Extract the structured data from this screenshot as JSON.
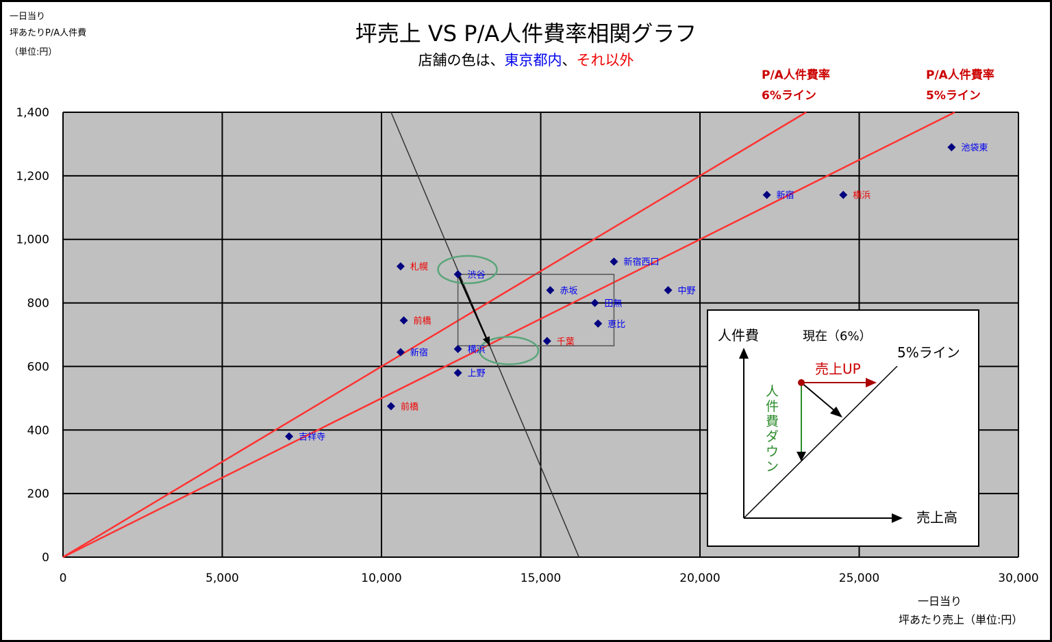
{
  "chart_data": {
    "type": "scatter",
    "title": "坪売上 VS P/A人件費率相関グラフ",
    "subtitle": {
      "prefix": "店舗の色は、",
      "tokyo": "東京都内",
      "sep": "、",
      "other": "それ以外"
    },
    "ylabel": [
      "一日当り",
      "坪あたりP/A人件費",
      "（単位:円）"
    ],
    "xlabel": [
      "一日当り",
      "坪あたり売上（単位:円）"
    ],
    "xlim": [
      0,
      30000
    ],
    "ylim": [
      0,
      1400
    ],
    "x_ticks": [
      0,
      5000,
      10000,
      15000,
      20000,
      25000,
      30000
    ],
    "y_ticks": [
      0,
      200,
      400,
      600,
      800,
      1000,
      1200,
      1400
    ],
    "x_tick_labels": [
      "0",
      "5,000",
      "10,000",
      "15,000",
      "20,000",
      "25,000",
      "30,000"
    ],
    "y_tick_labels": [
      "0",
      "200",
      "400",
      "600",
      "800",
      "1,000",
      "1,200",
      "1,400"
    ],
    "grid": true,
    "colors": {
      "tokyo": "#0000ee",
      "other": "#ee0000",
      "marker": "#000080",
      "ratio_line": "#ff3333",
      "plot_bg": "#c0c0c0",
      "grid": "#000000",
      "ellipse": "#5aa57a"
    },
    "ratio_lines": [
      {
        "label": [
          "P/A人件費率",
          "6%ライン"
        ],
        "slope": 0.06
      },
      {
        "label": [
          "P/A人件費率",
          "5%ライン"
        ],
        "slope": 0.05
      }
    ],
    "points": [
      {
        "x": 7100,
        "y": 380,
        "label": "吉祥寺",
        "group": "tokyo"
      },
      {
        "x": 10300,
        "y": 475,
        "label": "前橋",
        "group": "other"
      },
      {
        "x": 10600,
        "y": 645,
        "label": "新宿",
        "group": "tokyo"
      },
      {
        "x": 10700,
        "y": 745,
        "label": "前橋",
        "group": "other"
      },
      {
        "x": 10600,
        "y": 915,
        "label": "札幌",
        "group": "other"
      },
      {
        "x": 12400,
        "y": 890,
        "label": "渋谷",
        "group": "tokyo"
      },
      {
        "x": 12400,
        "y": 655,
        "label": "横浜",
        "group": "tokyo"
      },
      {
        "x": 12400,
        "y": 580,
        "label": "上野",
        "group": "tokyo"
      },
      {
        "x": 15200,
        "y": 680,
        "label": "千葉",
        "group": "other"
      },
      {
        "x": 15300,
        "y": 840,
        "label": "赤坂",
        "group": "tokyo"
      },
      {
        "x": 16700,
        "y": 800,
        "label": "田無",
        "group": "tokyo"
      },
      {
        "x": 16800,
        "y": 735,
        "label": "恵比",
        "group": "tokyo"
      },
      {
        "x": 17300,
        "y": 930,
        "label": "新宿西口",
        "group": "tokyo"
      },
      {
        "x": 19000,
        "y": 840,
        "label": "中野",
        "group": "tokyo"
      },
      {
        "x": 22100,
        "y": 1140,
        "label": "新宿",
        "group": "tokyo"
      },
      {
        "x": 24500,
        "y": 1140,
        "label": "横浜",
        "group": "other"
      },
      {
        "x": 27900,
        "y": 1290,
        "label": "池袋東",
        "group": "tokyo"
      }
    ],
    "annotation": {
      "trend_line": [
        [
          10300,
          1400
        ],
        [
          16200,
          0
        ]
      ],
      "ellipses": [
        {
          "x": 12700,
          "y": 905
        },
        {
          "x": 14000,
          "y": 650
        }
      ],
      "arrow": [
        [
          12400,
          890
        ],
        [
          13400,
          665
        ]
      ],
      "guide_rect": [
        [
          12400,
          665
        ],
        [
          17300,
          890
        ]
      ]
    },
    "inset": {
      "y_axis_label": "人件費",
      "current_label": "現在（6%）",
      "line_label": "5%ライン",
      "sales_up_label": "売上UP",
      "cost_down_label": [
        "人",
        "件",
        "費",
        "ダ",
        "ウ",
        "ン"
      ],
      "x_axis_label": "売上高"
    }
  }
}
